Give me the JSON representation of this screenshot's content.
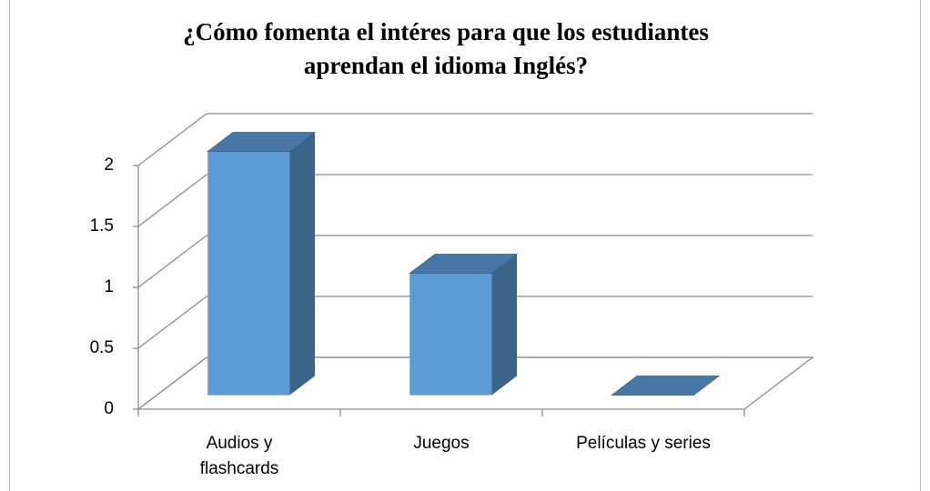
{
  "chart_data": {
    "type": "bar3d",
    "title": [
      "¿Cómo fomenta el intéres para  que los estudiantes",
      "aprendan el idioma Inglés?"
    ],
    "categories": [
      "Audios y flashcards",
      "Juegos",
      "Películas y series"
    ],
    "values": [
      2,
      1,
      0
    ],
    "color": "#5b9bd5",
    "ylim": [
      0,
      2
    ],
    "yticks": [
      0,
      0.5,
      1,
      1.5,
      2
    ],
    "grid": true
  }
}
